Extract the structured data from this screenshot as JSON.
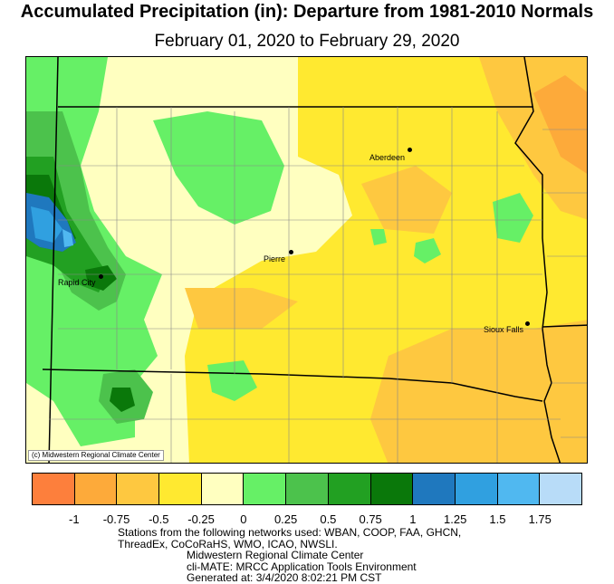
{
  "title": "Accumulated Precipitation (in): Departure from 1981-2010 Normals",
  "subtitle": "February 01, 2020 to February 29, 2020",
  "map": {
    "credit": "(c) Midwestern Regional Climate Center",
    "cities": [
      {
        "name": "Aberdeen"
      },
      {
        "name": "Pierre"
      },
      {
        "name": "Rapid City"
      },
      {
        "name": "Sioux Falls"
      }
    ]
  },
  "legend": {
    "colors": [
      "#fd7f3c",
      "#fdaa3a",
      "#fec840",
      "#ffe930",
      "#ffffc0",
      "#66f066",
      "#4cc24c",
      "#22a022",
      "#0a780a",
      "#1f78be",
      "#30a0e0",
      "#50b8f0",
      "#b8dcf8"
    ],
    "ticks": [
      "-1",
      "-0.75",
      "-0.5",
      "-0.25",
      "0",
      "0.25",
      "0.5",
      "0.75",
      "1",
      "1.25",
      "1.5",
      "1.75"
    ]
  },
  "notes": [
    "Stations from the following networks used: WBAN, COOP, FAA, GHCN,",
    "ThreadEx, CoCoRaHS, WMO, ICAO, NWSLI.",
    "Midwestern Regional Climate Center",
    "cli-MATE: MRCC Application Tools Environment",
    "Generated at: 3/4/2020 8:02:21 PM CST"
  ]
}
